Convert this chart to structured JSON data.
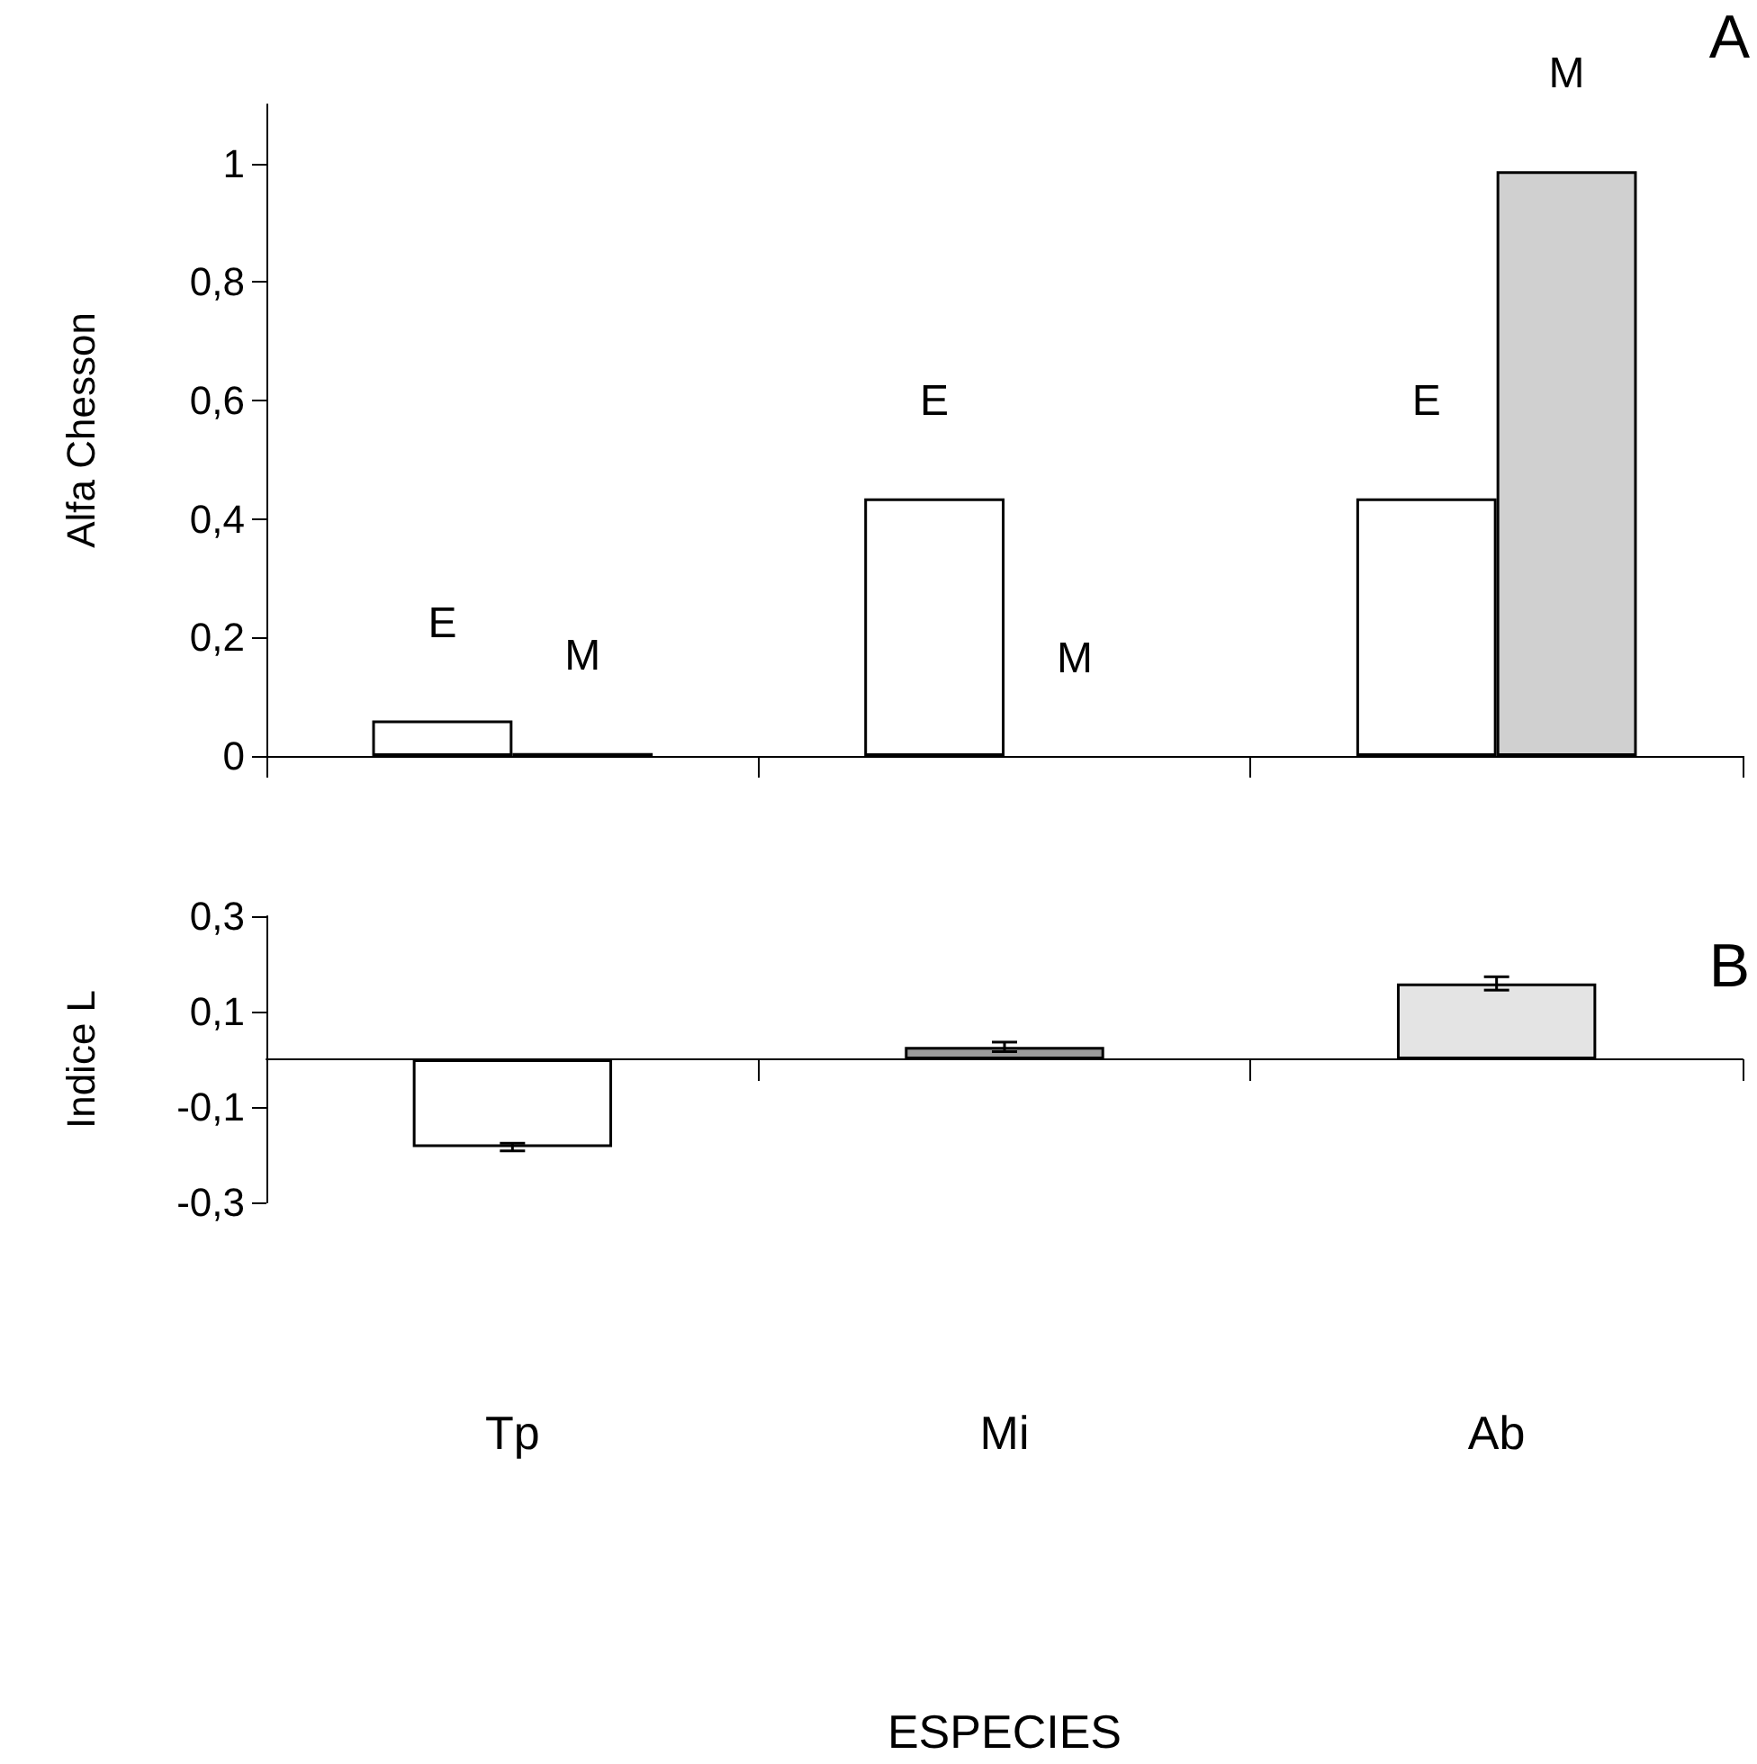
{
  "chart_data": [
    {
      "type": "bar",
      "ylabel": "Alfa Chesson",
      "categories": [
        null,
        null,
        null
      ],
      "series": [
        {
          "name": "E",
          "color": "#ffffff",
          "values": [
            0.06,
            0.435,
            0.435
          ]
        },
        {
          "name": "M",
          "color": "#d0d0d0",
          "values": [
            0.005,
            0,
            0.987
          ]
        }
      ],
      "ylim": [
        0,
        1.1
      ],
      "yticks": [
        0,
        {
          "value": 0.2,
          "label": "0,2"
        },
        {
          "value": 0.4,
          "label": "0,4"
        },
        {
          "value": 0.6,
          "label": "0,6"
        },
        {
          "value": 0.8,
          "label": "0,8"
        },
        1
      ],
      "tick_labels": "y",
      "grid": false,
      "legend": false,
      "annotations": [
        "A"
      ]
    },
    {
      "type": "bar",
      "ylabel": "Indice L",
      "xlabel": "ESPECIES",
      "categories": [
        "Tp",
        "Mi",
        "Ab"
      ],
      "values": [
        -0.184,
        0.026,
        0.159
      ],
      "colors": [
        "#ffffff",
        "#9a9a9a",
        "#e4e4e4"
      ],
      "errors": [
        0.008,
        0.01,
        0.014
      ],
      "ylim": [
        -0.3,
        0.3
      ],
      "yticks": [
        {
          "value": -0.3,
          "label": "-0,3"
        },
        {
          "value": -0.1,
          "label": "-0,1"
        },
        {
          "value": 0.1,
          "label": "0,1"
        },
        {
          "value": 0.3,
          "label": "0,3"
        }
      ],
      "grid": false,
      "legend": false,
      "annotations": [
        "B"
      ]
    }
  ]
}
